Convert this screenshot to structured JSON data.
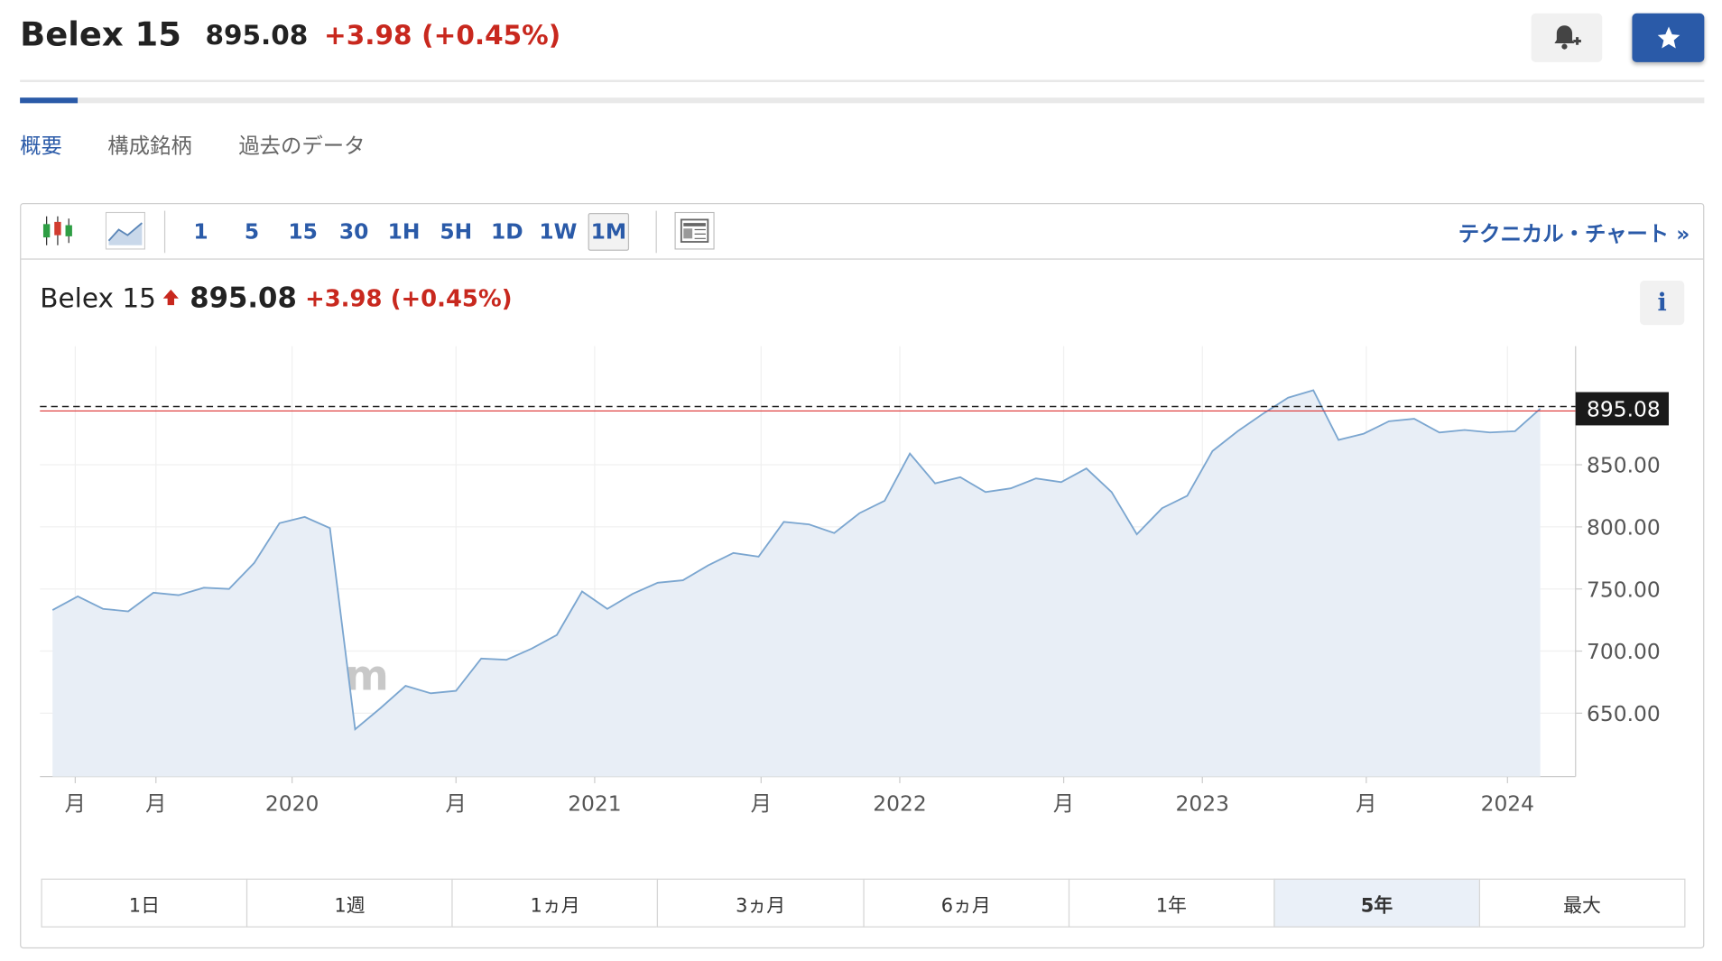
{
  "header": {
    "title": "Belex 15",
    "price": "895.08",
    "change": "+3.98",
    "change_pct": "(+0.45%)"
  },
  "tabs": [
    "概要",
    "構成銘柄",
    "過去のデータ"
  ],
  "active_tab": 0,
  "toolbar": {
    "intervals": [
      "1",
      "5",
      "15",
      "30",
      "1H",
      "5H",
      "1D",
      "1W",
      "1M"
    ],
    "active_interval": 8,
    "technical_link": "テクニカル・チャート »"
  },
  "chart_data": {
    "type": "line",
    "color": "#7ba6d0",
    "area_color": "#e8eef6",
    "watermark": "Investing.com",
    "values": [
      733,
      744,
      734,
      732,
      747,
      745,
      751,
      750,
      771,
      803,
      808,
      799,
      637,
      654,
      672,
      666,
      668,
      694,
      693,
      702,
      713,
      748,
      734,
      746,
      755,
      757,
      769,
      779,
      776,
      804,
      802,
      795,
      811,
      821,
      859,
      835,
      840,
      828,
      831,
      839,
      836,
      847,
      828,
      794,
      815,
      825,
      861,
      877,
      891,
      904,
      910,
      870,
      875,
      885,
      887,
      876,
      878,
      876,
      877,
      895.08
    ],
    "last_price": 895.08,
    "xlim": [
      -0.5,
      60.4
    ],
    "xticks": [
      {
        "value": 0.9,
        "label": "月"
      },
      {
        "value": 4.1,
        "label": "月"
      },
      {
        "value": 9.5,
        "label": "2020"
      },
      {
        "value": 16.0,
        "label": "月"
      },
      {
        "value": 21.5,
        "label": "2021"
      },
      {
        "value": 28.1,
        "label": "月"
      },
      {
        "value": 33.6,
        "label": "2022"
      },
      {
        "value": 40.1,
        "label": "月"
      },
      {
        "value": 45.6,
        "label": "2023"
      },
      {
        "value": 52.1,
        "label": "月"
      },
      {
        "value": 57.7,
        "label": "2024"
      }
    ],
    "ylim": [
      599,
      945.5
    ],
    "yticks": [
      {
        "value": 650,
        "label": "650.00"
      },
      {
        "value": 700,
        "label": "700.00"
      },
      {
        "value": 750,
        "label": "750.00"
      },
      {
        "value": 800,
        "label": "800.00"
      },
      {
        "value": 850,
        "label": "850.00"
      }
    ],
    "grid": true
  },
  "ranges": [
    "1日",
    "1週",
    "1ヵ月",
    "3ヵ月",
    "6ヵ月",
    "1年",
    "5年",
    "最大"
  ],
  "active_range": 6
}
